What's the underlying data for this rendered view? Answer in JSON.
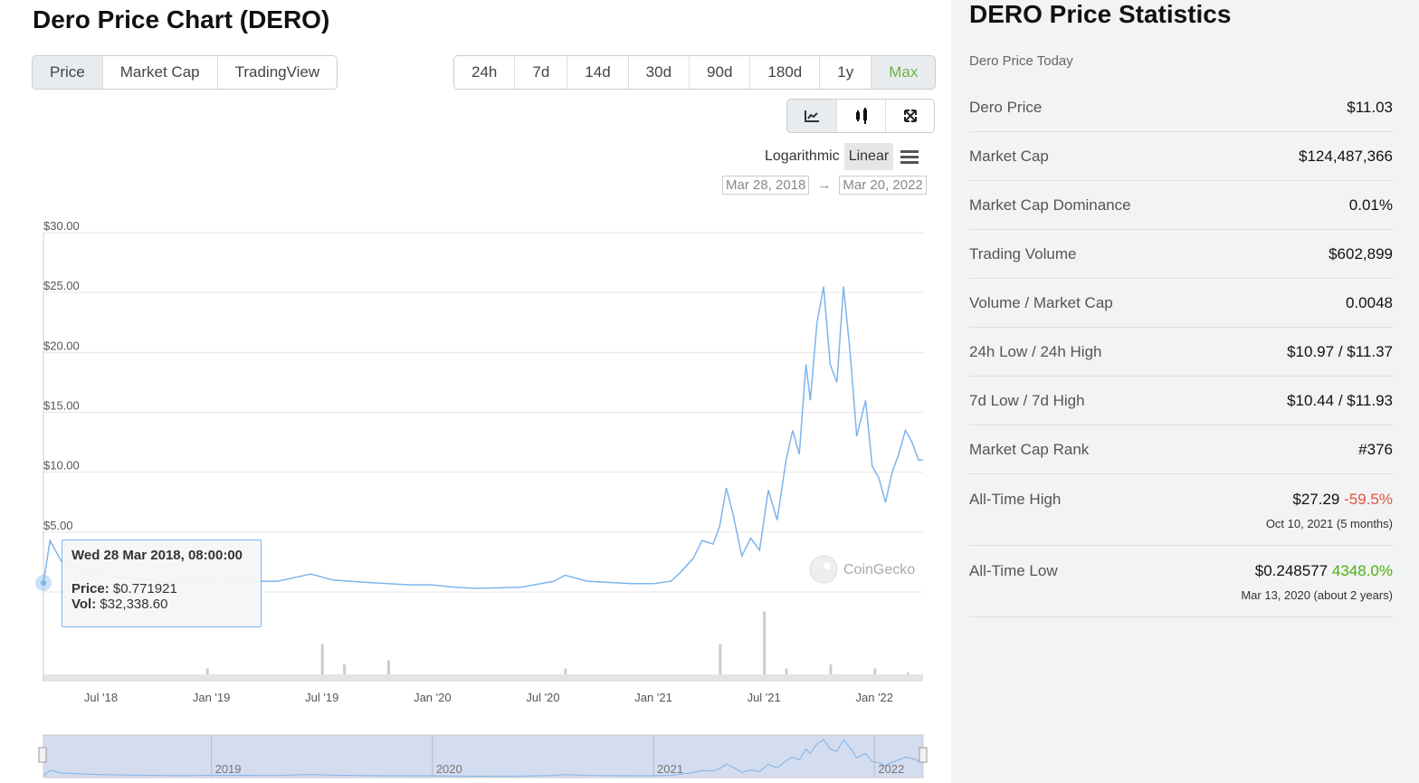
{
  "title": "Dero Price Chart (DERO)",
  "tabs": [
    "Price",
    "Market Cap",
    "TradingView"
  ],
  "timeframes": [
    "24h",
    "7d",
    "14d",
    "30d",
    "90d",
    "180d",
    "1y",
    "Max"
  ],
  "scale": {
    "log": "Logarithmic",
    "linear": "Linear"
  },
  "range": {
    "from": "Mar 28, 2018",
    "arrow": "→",
    "to": "Mar 20, 2022"
  },
  "tooltip": {
    "date": "Wed 28 Mar 2018, 08:00:00",
    "price_label": "Price:",
    "price": "$0.771921",
    "vol_label": "Vol:",
    "vol": "$32,338.60"
  },
  "watermark": "CoinGecko",
  "chart_data": {
    "type": "line",
    "title": "Dero Price Chart (DERO)",
    "ylim": [
      0,
      30
    ],
    "yticks": [
      "$0.00",
      "$5.00",
      "$10.00",
      "$15.00",
      "$20.00",
      "$25.00",
      "$30.00"
    ],
    "xticks": [
      {
        "t": 2018.5,
        "l": "Jul '18"
      },
      {
        "t": 2019.0,
        "l": "Jan '19"
      },
      {
        "t": 2019.5,
        "l": "Jul '19"
      },
      {
        "t": 2020.0,
        "l": "Jan '20"
      },
      {
        "t": 2020.5,
        "l": "Jul '20"
      },
      {
        "t": 2021.0,
        "l": "Jan '21"
      },
      {
        "t": 2021.5,
        "l": "Jul '21"
      },
      {
        "t": 2022.0,
        "l": "Jan '22"
      }
    ],
    "xlim": [
      2018.24,
      2022.22
    ],
    "navigator_labels": [
      {
        "t": 2019.0,
        "l": "2019"
      },
      {
        "t": 2020.0,
        "l": "2020"
      },
      {
        "t": 2021.0,
        "l": "2021"
      },
      {
        "t": 2022.0,
        "l": "2022"
      }
    ],
    "price": [
      [
        2018.24,
        0.77
      ],
      [
        2018.27,
        4.3
      ],
      [
        2018.32,
        2.6
      ],
      [
        2018.4,
        2.0
      ],
      [
        2018.5,
        1.4
      ],
      [
        2018.6,
        1.2
      ],
      [
        2018.75,
        0.9
      ],
      [
        2018.9,
        0.8
      ],
      [
        2019.0,
        1.0
      ],
      [
        2019.2,
        0.9
      ],
      [
        2019.3,
        0.9
      ],
      [
        2019.45,
        1.5
      ],
      [
        2019.55,
        1.0
      ],
      [
        2019.7,
        0.8
      ],
      [
        2019.9,
        0.6
      ],
      [
        2020.0,
        0.6
      ],
      [
        2020.1,
        0.4
      ],
      [
        2020.2,
        0.3
      ],
      [
        2020.4,
        0.4
      ],
      [
        2020.55,
        0.9
      ],
      [
        2020.6,
        1.4
      ],
      [
        2020.7,
        0.9
      ],
      [
        2020.9,
        0.7
      ],
      [
        2021.0,
        0.7
      ],
      [
        2021.08,
        0.9
      ],
      [
        2021.12,
        1.6
      ],
      [
        2021.18,
        2.8
      ],
      [
        2021.22,
        4.3
      ],
      [
        2021.27,
        4.0
      ],
      [
        2021.3,
        5.5
      ],
      [
        2021.33,
        8.7
      ],
      [
        2021.36,
        6.5
      ],
      [
        2021.4,
        3.0
      ],
      [
        2021.44,
        4.5
      ],
      [
        2021.48,
        3.5
      ],
      [
        2021.52,
        8.5
      ],
      [
        2021.56,
        6.0
      ],
      [
        2021.6,
        11.0
      ],
      [
        2021.63,
        13.5
      ],
      [
        2021.66,
        11.5
      ],
      [
        2021.69,
        19.0
      ],
      [
        2021.71,
        16.0
      ],
      [
        2021.74,
        22.5
      ],
      [
        2021.77,
        25.5
      ],
      [
        2021.8,
        19.0
      ],
      [
        2021.83,
        17.5
      ],
      [
        2021.86,
        25.5
      ],
      [
        2021.89,
        20.0
      ],
      [
        2021.92,
        13.0
      ],
      [
        2021.96,
        16.0
      ],
      [
        2021.99,
        10.5
      ],
      [
        2022.02,
        9.5
      ],
      [
        2022.05,
        7.5
      ],
      [
        2022.08,
        10.0
      ],
      [
        2022.11,
        11.5
      ],
      [
        2022.14,
        13.5
      ],
      [
        2022.17,
        12.5
      ],
      [
        2022.2,
        11.0
      ],
      [
        2022.22,
        11.03
      ]
    ],
    "volume": [
      [
        2018.24,
        0.05
      ],
      [
        2018.98,
        0.15
      ],
      [
        2019.5,
        0.45
      ],
      [
        2019.6,
        0.2
      ],
      [
        2019.8,
        0.25
      ],
      [
        2020.6,
        0.15
      ],
      [
        2021.3,
        0.45
      ],
      [
        2021.5,
        0.85
      ],
      [
        2021.6,
        0.15
      ],
      [
        2021.8,
        0.2
      ],
      [
        2022.0,
        0.15
      ],
      [
        2022.15,
        0.1
      ]
    ]
  },
  "stats": {
    "title": "DERO Price Statistics",
    "subtitle": "Dero Price Today",
    "rows": [
      {
        "k": "Dero Price",
        "v": "$11.03"
      },
      {
        "k": "Market Cap",
        "v": "$124,487,366"
      },
      {
        "k": "Market Cap Dominance",
        "v": "0.01%"
      },
      {
        "k": "Trading Volume",
        "v": "$602,899"
      },
      {
        "k": "Volume / Market Cap",
        "v": "0.0048"
      },
      {
        "k": "24h Low / 24h High",
        "v": "$10.97 / $11.37"
      },
      {
        "k": "7d Low / 7d High",
        "v": "$10.44 / $11.93"
      },
      {
        "k": "Market Cap Rank",
        "v": "#376"
      }
    ],
    "ath": {
      "k": "All-Time High",
      "v": "$27.29",
      "pct": "-59.5%",
      "date": "Oct 10, 2021 (5 months)"
    },
    "atl": {
      "k": "All-Time Low",
      "v": "$0.248577",
      "pct": "4348.0%",
      "date": "Mar 13, 2020 (about 2 years)"
    }
  }
}
